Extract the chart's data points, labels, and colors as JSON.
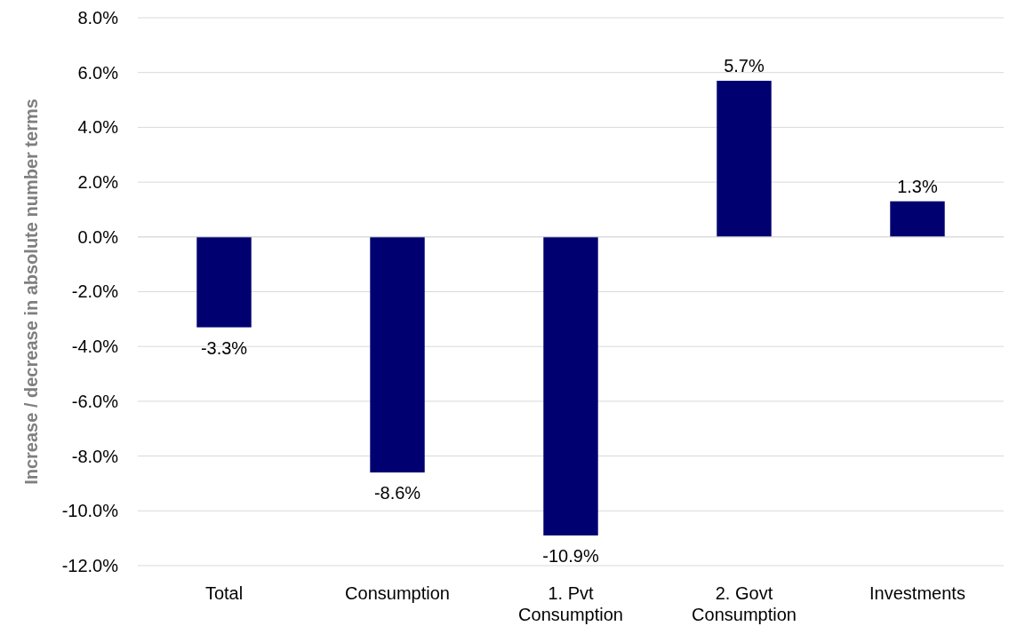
{
  "chart_data": {
    "type": "bar",
    "ylabel": "Increase / decrease in absolute number terms",
    "categories": [
      "Total",
      "Consumption",
      "1. Pvt Consumption",
      "2. Govt Consumption",
      "Investments"
    ],
    "values": [
      -3.3,
      -8.6,
      -10.9,
      5.7,
      1.3
    ],
    "value_labels": [
      "-3.3%",
      "-8.6%",
      "-10.9%",
      "5.7%",
      "1.3%"
    ],
    "color": "#000070",
    "ylim": [
      -12,
      8
    ],
    "yticks": [
      {
        "value": -12,
        "label": "-12.0%"
      },
      {
        "value": -10,
        "label": "-10.0%"
      },
      {
        "value": -8,
        "label": "-8.0%"
      },
      {
        "value": -6,
        "label": "-6.0%"
      },
      {
        "value": -4,
        "label": "-4.0%"
      },
      {
        "value": -2,
        "label": "-2.0%"
      },
      {
        "value": 0,
        "label": "0.0%"
      },
      {
        "value": 2,
        "label": "2.0%"
      },
      {
        "value": 4,
        "label": "4.0%"
      },
      {
        "value": 6,
        "label": "6.0%"
      },
      {
        "value": 8,
        "label": "8.0%"
      }
    ],
    "grid": "y"
  }
}
